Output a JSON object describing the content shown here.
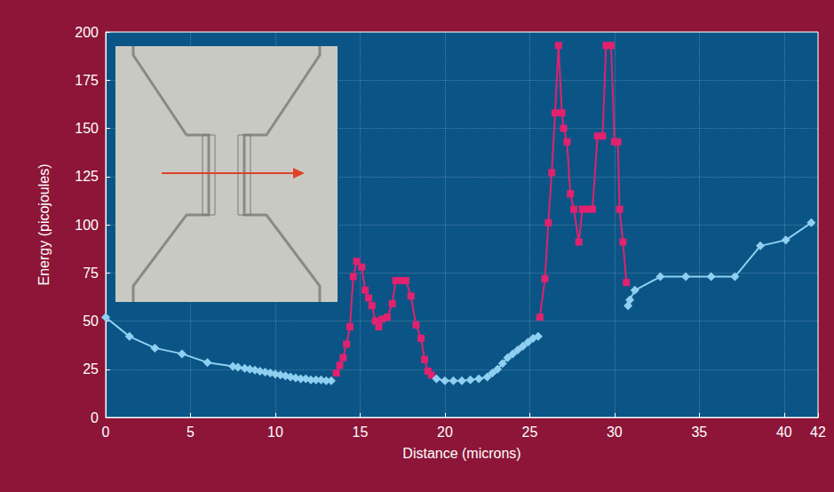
{
  "chart_data": {
    "type": "line",
    "x_label": "Distance (microns)",
    "y_label": "Energy (picojoules)",
    "xlim": [
      0,
      42
    ],
    "xticks": [
      0,
      5,
      10,
      15,
      20,
      25,
      30,
      35,
      40
    ],
    "ylim": [
      0,
      200
    ],
    "yticks": [
      0,
      25,
      50,
      75,
      100,
      125,
      150,
      175,
      200
    ],
    "grid": true,
    "series": [
      {
        "color": "#8fd0f2",
        "marker": "diamond",
        "x": [
          0,
          1.4,
          2.9,
          4.5,
          6,
          7.5,
          7.8,
          8.2,
          8.5,
          8.8,
          9.1,
          9.4,
          9.7,
          10,
          10.3,
          10.6,
          10.9,
          11.2,
          11.5,
          11.8,
          12.1,
          12.4,
          12.7,
          13,
          13.3
        ],
        "values": [
          52,
          42,
          36,
          33,
          28.5,
          26.5,
          26,
          25.5,
          25,
          24.5,
          24,
          23.5,
          23,
          22.5,
          22,
          21.5,
          21,
          20.5,
          20,
          20,
          19.5,
          19.5,
          19.5,
          19,
          19
        ]
      },
      {
        "color": "#e0226f",
        "marker": "square",
        "x": [
          13.6,
          13.8,
          14,
          14.2,
          14.4,
          14.6,
          14.8,
          15.1,
          15.3,
          15.5,
          15.7,
          15.9,
          16.1,
          16.3,
          16.6,
          16.9,
          17.1,
          17.4,
          17.7,
          18,
          18.3,
          18.6,
          18.8,
          19,
          19.2
        ],
        "values": [
          23,
          27,
          31,
          38,
          47,
          73,
          81,
          78,
          66,
          62,
          58,
          50,
          47,
          51,
          52,
          59,
          71,
          71,
          71,
          63,
          48,
          41,
          30,
          24,
          22
        ]
      },
      {
        "color": "#8fd0f2",
        "marker": "diamond",
        "x": [
          19.5,
          20,
          20.5,
          21,
          21.5,
          22,
          22.5,
          22.8,
          23.1,
          23.4,
          23.7,
          24,
          24.3,
          24.6,
          24.9,
          25.2,
          25.5
        ],
        "values": [
          20,
          19,
          19,
          19,
          19.5,
          20,
          21,
          23,
          25,
          28,
          31,
          33,
          35,
          37,
          39,
          41,
          42
        ]
      },
      {
        "color": "#e0226f",
        "marker": "square",
        "x": [
          25.6,
          25.9,
          26.1,
          26.3,
          26.5,
          26.7,
          26.9,
          27,
          27.2,
          27.4,
          27.6,
          27.9,
          28.1,
          28.4,
          28.7,
          29,
          29.3,
          29.5,
          29.8,
          30,
          30.2,
          30.3,
          30.5,
          30.7
        ],
        "values": [
          52,
          72,
          101,
          127,
          158,
          193,
          158,
          150,
          143,
          116,
          108,
          91,
          108,
          108,
          108,
          146,
          146,
          193,
          193,
          143,
          143,
          108,
          91,
          70
        ]
      },
      {
        "color": "#8fd0f2",
        "marker": "diamond",
        "x": [
          30.8,
          30.9,
          31.2,
          32.7,
          34.2,
          35.7,
          37.1,
          38.6,
          40.1,
          41.6
        ],
        "values": [
          58,
          61,
          66,
          73,
          73,
          73,
          73,
          89,
          92,
          101
        ]
      }
    ]
  }
}
